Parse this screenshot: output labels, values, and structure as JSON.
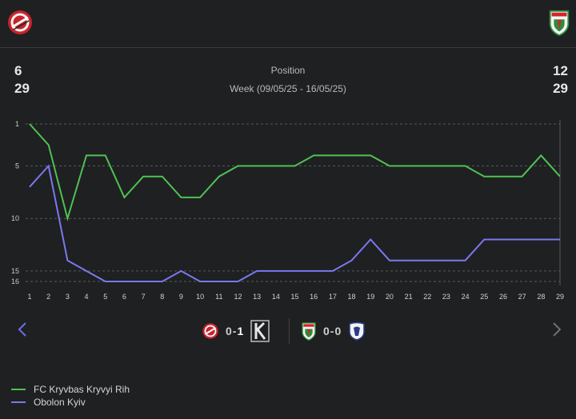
{
  "header": {
    "team_left_value_top": "6",
    "team_left_value_bottom": "29",
    "team_right_value_top": "12",
    "team_right_value_bottom": "29",
    "title": "Position",
    "subtitle": "Week (09/05/25 - 16/05/25)"
  },
  "colors": {
    "team1": "#4fc154",
    "team2": "#7a78f0",
    "accent": "#6d6bf0"
  },
  "chart_data": {
    "type": "line",
    "x": [
      1,
      2,
      3,
      4,
      5,
      6,
      7,
      8,
      9,
      10,
      11,
      12,
      13,
      14,
      15,
      16,
      17,
      18,
      19,
      20,
      21,
      22,
      23,
      24,
      25,
      26,
      27,
      28,
      29
    ],
    "x_ticks": [
      "1",
      "2",
      "3",
      "4",
      "5",
      "6",
      "7",
      "8",
      "9",
      "10",
      "11",
      "12",
      "13",
      "14",
      "15",
      "16",
      "17",
      "18",
      "19",
      "20",
      "21",
      "22",
      "23",
      "24",
      "25",
      "26",
      "27",
      "28",
      "29"
    ],
    "y_ticks": [
      "1",
      "5",
      "10",
      "15",
      "16"
    ],
    "ylim": [
      1,
      16
    ],
    "y_inverted": true,
    "grid": "dashed horizontal",
    "legend": "bottom-left",
    "series": [
      {
        "name": "FC Kryvbas Kryvyi Rih",
        "color": "#4fc154",
        "values": [
          1,
          3,
          10,
          4,
          4,
          8,
          6,
          6,
          8,
          8,
          6,
          5,
          5,
          5,
          5,
          4,
          4,
          4,
          4,
          5,
          5,
          5,
          5,
          5,
          6,
          6,
          6,
          4,
          6
        ]
      },
      {
        "name": "Obolon Kyiv",
        "color": "#7a78f0",
        "values": [
          7,
          5,
          14,
          15,
          16,
          16,
          16,
          16,
          15,
          16,
          16,
          16,
          15,
          15,
          15,
          15,
          15,
          14,
          12,
          14,
          14,
          14,
          14,
          14,
          12,
          12,
          12,
          12,
          12
        ]
      }
    ]
  },
  "matches": [
    {
      "score_home": "0",
      "separator": "-",
      "score_away": "1"
    },
    {
      "score_home": "0",
      "separator": "-",
      "score_away": "0"
    }
  ],
  "icons": {
    "prev": "chevron-left-icon",
    "next": "chevron-right-icon",
    "kryvbas": "kryvbas-crest-icon",
    "obolon": "obolon-crest-icon",
    "opponent1": "k-crest-icon",
    "opponent2": "blue-crest-icon"
  }
}
